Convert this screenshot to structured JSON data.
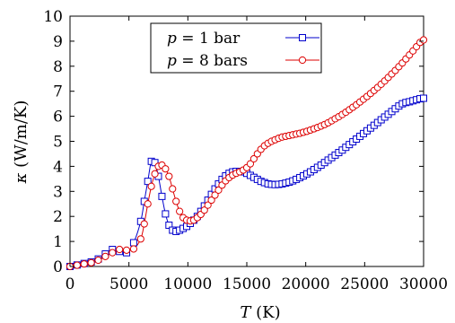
{
  "chart_data": {
    "type": "line",
    "xlabel_var": "T",
    "xlabel_unit": "(K)",
    "ylabel_var": "κ",
    "ylabel_unit": "(W/m/K)",
    "xlim": [
      0,
      30000
    ],
    "ylim": [
      0,
      10
    ],
    "xticks": [
      0,
      5000,
      10000,
      15000,
      20000,
      25000,
      30000
    ],
    "yticks": [
      0,
      1,
      2,
      3,
      4,
      5,
      6,
      7,
      8,
      9,
      10
    ],
    "grid": false,
    "legend_position": "top-center",
    "series": [
      {
        "name": "p = 1 bar",
        "legend_var": "p",
        "legend_value": "= 1 bar",
        "color": "#0000cc",
        "marker": "square",
        "x": [
          0,
          600,
          1200,
          1800,
          2400,
          3000,
          3600,
          4200,
          4800,
          5400,
          6000,
          6300,
          6600,
          6900,
          7200,
          7500,
          7800,
          8100,
          8400,
          8700,
          9000,
          9300,
          9600,
          9900,
          10200,
          10500,
          10800,
          11100,
          11400,
          11700,
          12000,
          12300,
          12600,
          12900,
          13200,
          13500,
          13800,
          14100,
          14400,
          14700,
          15000,
          15300,
          15600,
          15900,
          16200,
          16500,
          16800,
          17100,
          17400,
          17700,
          18000,
          18300,
          18600,
          18900,
          19200,
          19500,
          19800,
          20100,
          20400,
          20700,
          21000,
          21300,
          21600,
          21900,
          22200,
          22500,
          22800,
          23100,
          23400,
          23700,
          24000,
          24300,
          24600,
          24900,
          25200,
          25500,
          25800,
          26100,
          26400,
          26700,
          27000,
          27300,
          27600,
          27900,
          28200,
          28500,
          28800,
          29100,
          29400,
          29700,
          30000
        ],
        "y": [
          0.0,
          0.06,
          0.12,
          0.18,
          0.3,
          0.5,
          0.68,
          0.6,
          0.55,
          0.95,
          1.8,
          2.6,
          3.4,
          4.2,
          4.15,
          3.6,
          2.8,
          2.1,
          1.65,
          1.45,
          1.4,
          1.45,
          1.52,
          1.6,
          1.72,
          1.85,
          2.0,
          2.2,
          2.42,
          2.65,
          2.88,
          3.1,
          3.3,
          3.48,
          3.62,
          3.72,
          3.78,
          3.8,
          3.8,
          3.78,
          3.72,
          3.64,
          3.56,
          3.48,
          3.4,
          3.35,
          3.3,
          3.28,
          3.27,
          3.28,
          3.3,
          3.33,
          3.37,
          3.42,
          3.48,
          3.55,
          3.62,
          3.7,
          3.78,
          3.87,
          3.96,
          4.05,
          4.15,
          4.25,
          4.35,
          4.45,
          4.55,
          4.65,
          4.76,
          4.87,
          4.98,
          5.09,
          5.2,
          5.31,
          5.42,
          5.53,
          5.64,
          5.75,
          5.86,
          5.97,
          6.08,
          6.19,
          6.3,
          6.41,
          6.5,
          6.55,
          6.58,
          6.62,
          6.66,
          6.7,
          6.72
        ]
      },
      {
        "name": "p = 8 bars",
        "legend_var": "p",
        "legend_value": "= 8 bars",
        "color": "#dd0000",
        "marker": "circle",
        "x": [
          0,
          600,
          1200,
          1800,
          2400,
          3000,
          3600,
          4200,
          4800,
          5400,
          6000,
          6300,
          6600,
          6900,
          7200,
          7500,
          7800,
          8100,
          8400,
          8700,
          9000,
          9300,
          9600,
          9900,
          10200,
          10500,
          10800,
          11100,
          11400,
          11700,
          12000,
          12300,
          12600,
          12900,
          13200,
          13500,
          13800,
          14100,
          14400,
          14700,
          15000,
          15300,
          15600,
          15900,
          16200,
          16500,
          16800,
          17100,
          17400,
          17700,
          18000,
          18300,
          18600,
          18900,
          19200,
          19500,
          19800,
          20100,
          20400,
          20700,
          21000,
          21300,
          21600,
          21900,
          22200,
          22500,
          22800,
          23100,
          23400,
          23700,
          24000,
          24300,
          24600,
          24900,
          25200,
          25500,
          25800,
          26100,
          26400,
          26700,
          27000,
          27300,
          27600,
          27900,
          28200,
          28500,
          28800,
          29100,
          29400,
          29700,
          30000
        ],
        "y": [
          0.0,
          0.05,
          0.1,
          0.15,
          0.25,
          0.4,
          0.55,
          0.68,
          0.65,
          0.7,
          1.1,
          1.7,
          2.5,
          3.2,
          3.7,
          4.0,
          4.05,
          3.9,
          3.6,
          3.1,
          2.6,
          2.2,
          1.95,
          1.85,
          1.82,
          1.85,
          1.95,
          2.08,
          2.25,
          2.45,
          2.65,
          2.85,
          3.05,
          3.25,
          3.42,
          3.55,
          3.65,
          3.72,
          3.78,
          3.85,
          3.95,
          4.1,
          4.3,
          4.5,
          4.68,
          4.82,
          4.92,
          5.0,
          5.06,
          5.12,
          5.17,
          5.2,
          5.23,
          5.26,
          5.29,
          5.32,
          5.36,
          5.4,
          5.45,
          5.5,
          5.55,
          5.61,
          5.67,
          5.74,
          5.82,
          5.9,
          5.98,
          6.07,
          6.16,
          6.26,
          6.36,
          6.46,
          6.57,
          6.68,
          6.79,
          6.91,
          7.03,
          7.15,
          7.28,
          7.41,
          7.55,
          7.69,
          7.83,
          7.98,
          8.13,
          8.29,
          8.45,
          8.61,
          8.78,
          8.95,
          9.05
        ]
      }
    ]
  }
}
